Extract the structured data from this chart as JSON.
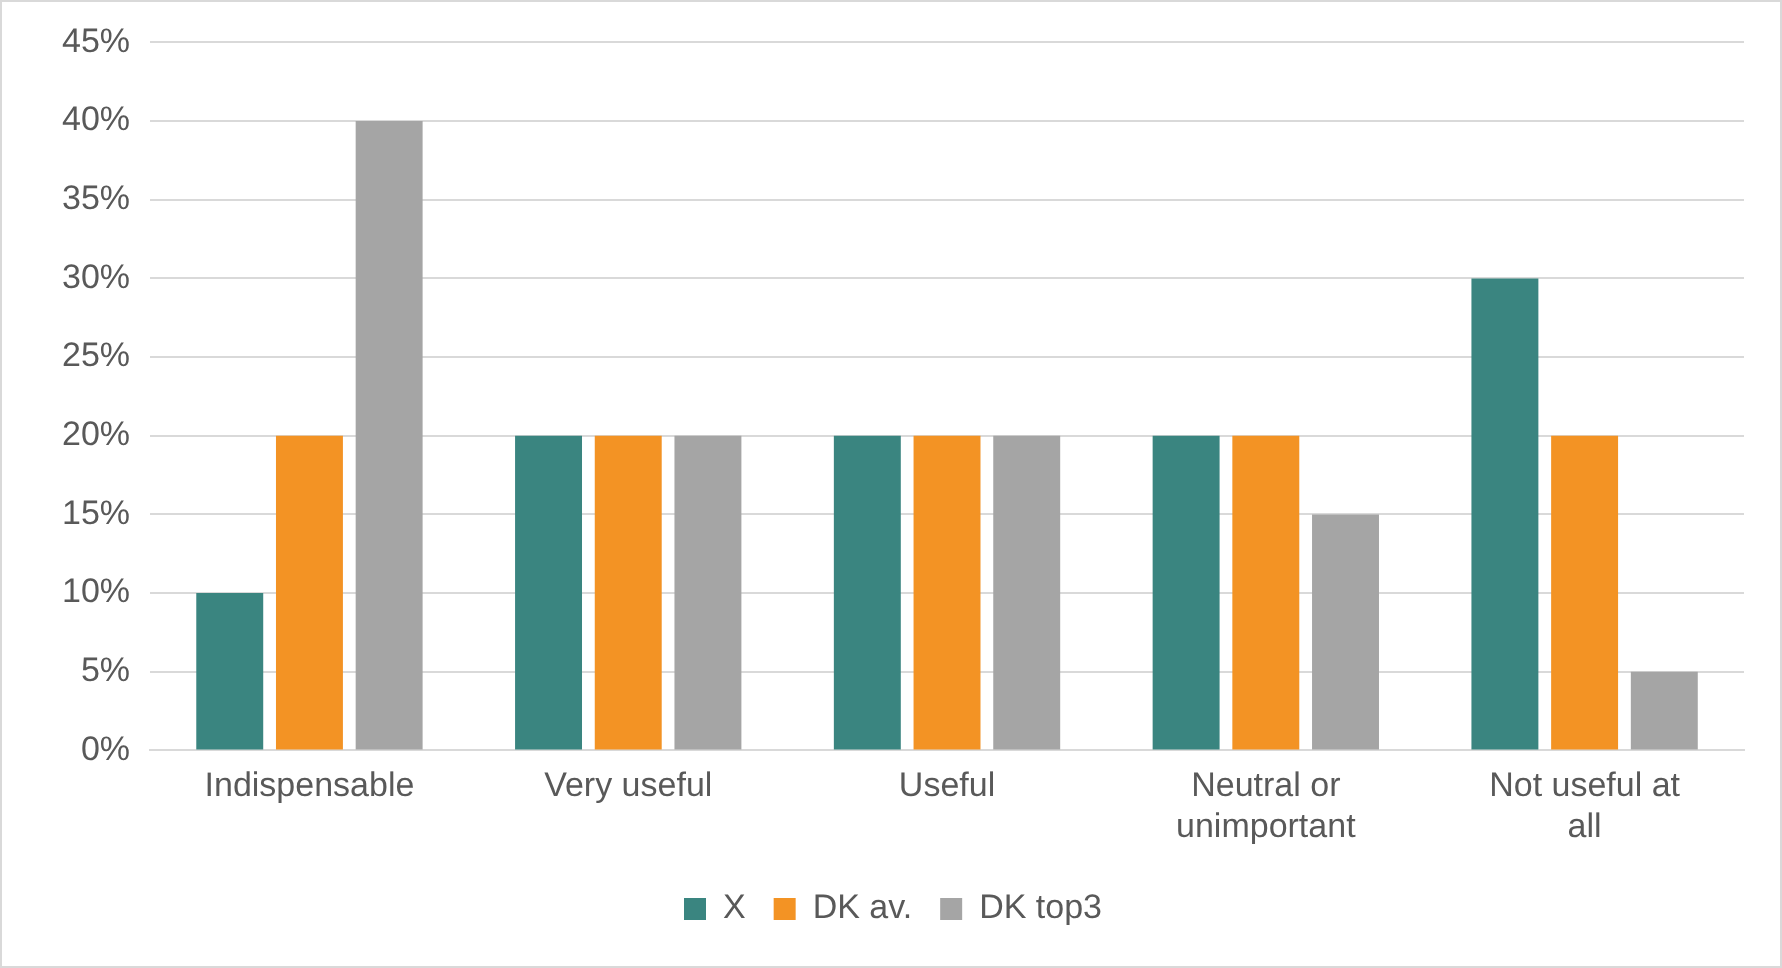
{
  "chart_data": {
    "type": "bar",
    "categories": [
      "Indispensable",
      "Very useful",
      "Useful",
      "Neutral or unimportant",
      "Not useful at all"
    ],
    "series": [
      {
        "name": "X",
        "color": "#3a8580",
        "values": [
          10,
          20,
          20,
          20,
          30
        ]
      },
      {
        "name": "DK av.",
        "color": "#f39324",
        "values": [
          20,
          20,
          20,
          20,
          20
        ]
      },
      {
        "name": "DK top3",
        "color": "#a5a5a5",
        "values": [
          40,
          20,
          20,
          15,
          5
        ]
      }
    ],
    "ylim": [
      0,
      45
    ],
    "yticks": [
      {
        "value": 0,
        "label": "0%"
      },
      {
        "value": 5,
        "label": "5%"
      },
      {
        "value": 10,
        "label": "10%"
      },
      {
        "value": 15,
        "label": "15%"
      },
      {
        "value": 20,
        "label": "20%"
      },
      {
        "value": 25,
        "label": "25%"
      },
      {
        "value": 30,
        "label": "30%"
      },
      {
        "value": 35,
        "label": "35%"
      },
      {
        "value": 40,
        "label": "40%"
      },
      {
        "value": 45,
        "label": "45%"
      }
    ],
    "grid": "y",
    "legend": "bottom"
  }
}
